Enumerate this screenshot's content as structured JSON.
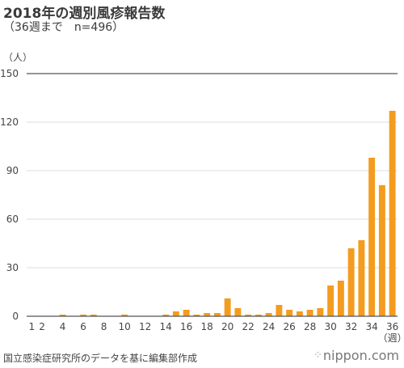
{
  "chart_data": {
    "type": "bar",
    "title": "2018年の週別風疹報告数",
    "subtitle": "（36週まで　n=496）",
    "ylabel": "（人）",
    "xlabel": "（週）",
    "ylim": [
      0,
      150
    ],
    "yticks": [
      0,
      30,
      60,
      90,
      120,
      150
    ],
    "x_tick_labels": [
      {
        "week": 1,
        "label": "1"
      },
      {
        "week": 2,
        "label": "2"
      },
      {
        "week": 4,
        "label": "4"
      },
      {
        "week": 6,
        "label": "6"
      },
      {
        "week": 8,
        "label": "8"
      },
      {
        "week": 10,
        "label": "10"
      },
      {
        "week": 12,
        "label": "12"
      },
      {
        "week": 14,
        "label": "14"
      },
      {
        "week": 16,
        "label": "16"
      },
      {
        "week": 18,
        "label": "18"
      },
      {
        "week": 20,
        "label": "20"
      },
      {
        "week": 22,
        "label": "22"
      },
      {
        "week": 24,
        "label": "24"
      },
      {
        "week": 26,
        "label": "26"
      },
      {
        "week": 28,
        "label": "28"
      },
      {
        "week": 30,
        "label": "30"
      },
      {
        "week": 32,
        "label": "32"
      },
      {
        "week": 34,
        "label": "34"
      },
      {
        "week": 36,
        "label": "36"
      }
    ],
    "categories": [
      1,
      2,
      3,
      4,
      5,
      6,
      7,
      8,
      9,
      10,
      11,
      12,
      13,
      14,
      15,
      16,
      17,
      18,
      19,
      20,
      21,
      22,
      23,
      24,
      25,
      26,
      27,
      28,
      29,
      30,
      31,
      32,
      33,
      34,
      35,
      36
    ],
    "values": [
      0,
      0,
      0,
      1,
      0,
      1,
      1,
      0,
      0,
      1,
      0,
      0,
      0,
      1,
      3,
      4,
      1,
      2,
      2,
      11,
      5,
      1,
      1,
      2,
      7,
      4,
      3,
      4,
      5,
      19,
      22,
      42,
      47,
      98,
      81,
      127
    ],
    "bar_color": "#f39c1f",
    "grid": true
  },
  "footer": {
    "source": "国立感染症研究所のデータを基に編集部作成",
    "brand": "nippon.com"
  }
}
